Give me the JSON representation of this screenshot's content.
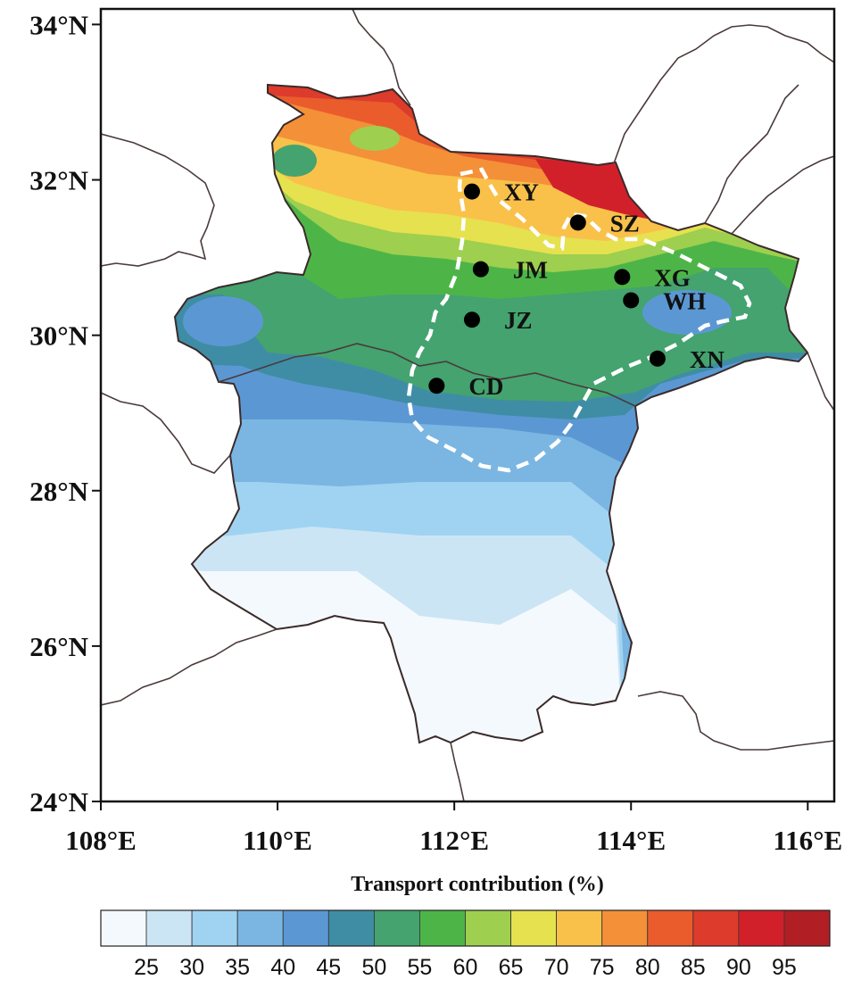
{
  "chart_data": {
    "type": "heatmap",
    "title": "Transport contribution (%)",
    "x_axis": {
      "range": [
        108,
        116.3
      ],
      "ticks": [
        108,
        110,
        112,
        114,
        116
      ],
      "tick_labels": [
        "108°E",
        "110°E",
        "112°E",
        "114°E",
        "116°E"
      ]
    },
    "y_axis": {
      "range": [
        24,
        34.2
      ],
      "ticks": [
        24,
        26,
        28,
        30,
        32,
        34
      ],
      "tick_labels": [
        "24°N",
        "26°N",
        "28°N",
        "30°N",
        "32°N",
        "34°N"
      ]
    },
    "colorbar": {
      "orientation": "horizontal",
      "ticks": [
        "25",
        "30",
        "35",
        "40",
        "45",
        "50",
        "55",
        "60",
        "65",
        "70",
        "75",
        "80",
        "85",
        "90",
        "95"
      ],
      "colors": [
        "#f4f9fd",
        "#cbe5f5",
        "#9fd3f1",
        "#7bb6e2",
        "#5b98d3",
        "#3f8da5",
        "#44a36f",
        "#4db548",
        "#9ecf4f",
        "#e6e14f",
        "#f9c14a",
        "#f39038",
        "#ea5c2c",
        "#dd3b2b",
        "#d2202a",
        "#b11f24"
      ]
    },
    "stations": [
      {
        "code": "XY",
        "lon": 112.2,
        "lat": 31.85
      },
      {
        "code": "SZ",
        "lon": 113.4,
        "lat": 31.45
      },
      {
        "code": "JM",
        "lon": 112.3,
        "lat": 30.85
      },
      {
        "code": "XG",
        "lon": 113.9,
        "lat": 30.75
      },
      {
        "code": "WH",
        "lon": 114.0,
        "lat": 30.45
      },
      {
        "code": "JZ",
        "lon": 112.2,
        "lat": 30.2
      },
      {
        "code": "XN",
        "lon": 114.3,
        "lat": 29.7
      },
      {
        "code": "CD",
        "lon": 111.8,
        "lat": 29.35
      }
    ],
    "pattern": "Transport contribution highest (80–95%) in the northern part of the region, decreasing southward to 55–65% across the central plain and below 25% in the south."
  }
}
